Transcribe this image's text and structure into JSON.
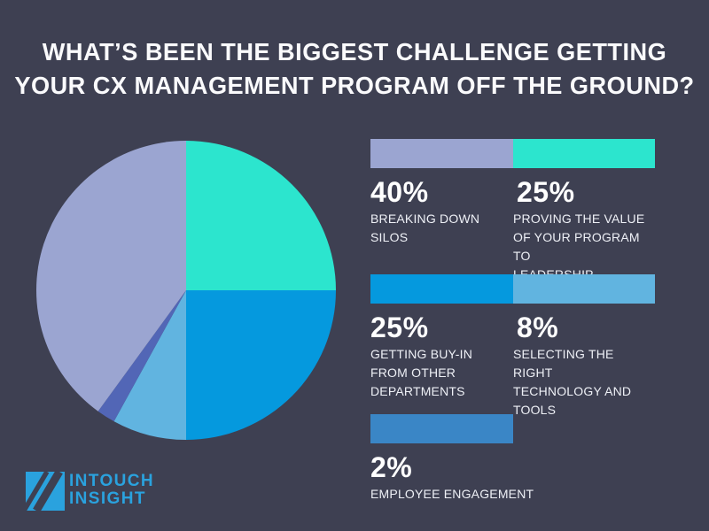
{
  "colors": {
    "background": "#3E4052",
    "lavender": "#9BA5D1",
    "teal": "#2CE5CE",
    "blue": "#0599DE",
    "light_blue": "#61B4E0",
    "steel_blue": "#3A86C6",
    "indigo": "#5266B6",
    "logo_blue": "#2AA2DE",
    "title_text": "#FAFAFC",
    "label_text": "#EEF0F6"
  },
  "title": {
    "line1": "WHAT’S BEEN THE BIGGEST CHALLENGE GETTING",
    "line2": "YOUR CX MANAGEMENT PROGRAM OFF THE GROUND?"
  },
  "chart_data": {
    "type": "pie",
    "title": "WHAT’S BEEN THE BIGGEST CHALLENGE GETTING YOUR CX MANAGEMENT PROGRAM OFF THE GROUND?",
    "unit": "%",
    "direction": "clockwise",
    "start_angle_deg": 0,
    "legend_position": "right",
    "slices": [
      {
        "id": "proving-the-value",
        "label": "PROVING THE VALUE OF YOUR PROGRAM TO LEADERSHIP",
        "value": 25,
        "color": "#2CE5CE"
      },
      {
        "id": "getting-buy-in",
        "label": "GETTING BUY-IN FROM OTHER DEPARTMENTS",
        "value": 25,
        "color": "#0599DE"
      },
      {
        "id": "selecting-technology",
        "label": "SELECTING THE RIGHT TECHNOLOGY AND TOOLS",
        "value": 8,
        "color": "#61B4E0"
      },
      {
        "id": "employee-engagement",
        "label": "EMPLOYEE ENGAGEMENT",
        "value": 2,
        "color": "#5266B6"
      },
      {
        "id": "breaking-down-silos",
        "label": "BREAKING DOWN SILOS",
        "value": 40,
        "color": "#9BA5D1"
      }
    ]
  },
  "legend": {
    "rows": [
      {
        "segments": [
          {
            "pct": "40%",
            "label": "BREAKING DOWN\nSILOS",
            "color": "#9BA5D1"
          },
          {
            "pct": "25%",
            "label": "PROVING THE VALUE\nOF YOUR PROGRAM TO\nLEADERSHIP",
            "color": "#2CE5CE"
          }
        ]
      },
      {
        "segments": [
          {
            "pct": "25%",
            "label": "GETTING BUY-IN\nFROM OTHER\nDEPARTMENTS",
            "color": "#0599DE"
          },
          {
            "pct": "8%",
            "label": "SELECTING THE RIGHT\nTECHNOLOGY AND\nTOOLS",
            "color": "#61B4E0"
          }
        ]
      },
      {
        "segments": [
          {
            "pct": "2%",
            "label": "EMPLOYEE ENGAGEMENT",
            "color": "#3A86C6"
          }
        ]
      }
    ]
  },
  "logo": {
    "line1": "INTOUCH",
    "line2": "INSIGHT"
  }
}
